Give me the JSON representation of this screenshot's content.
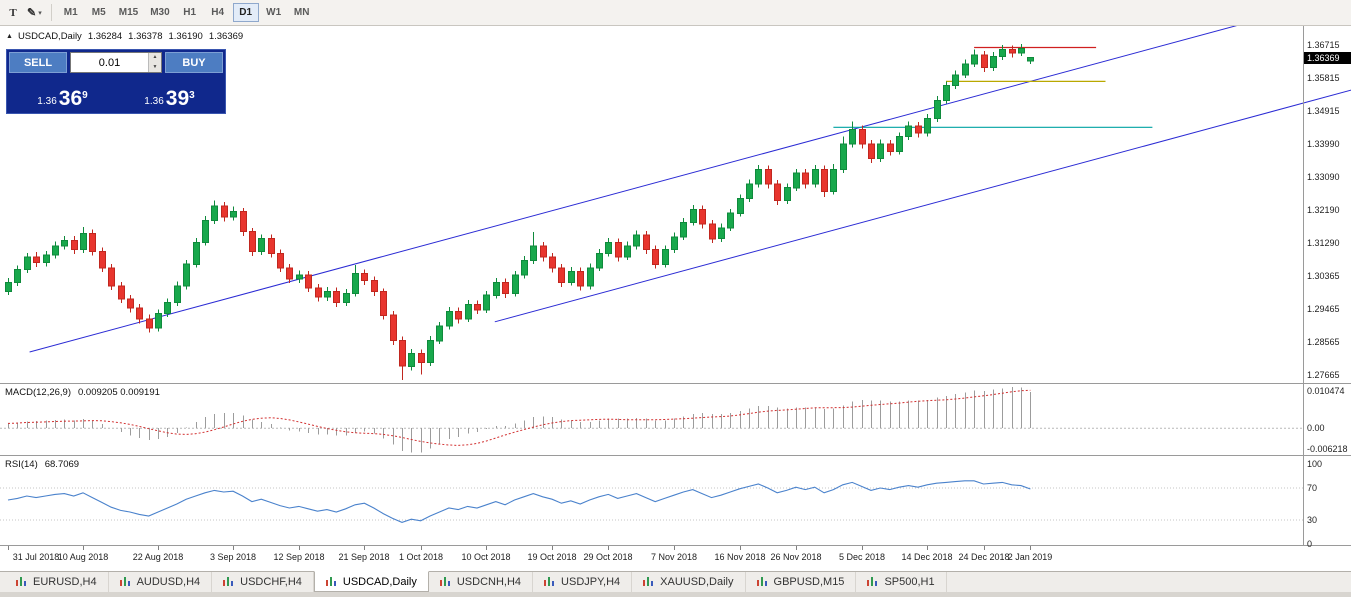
{
  "toolbar": {
    "tools": [
      {
        "name": "text-tool",
        "glyph": "T",
        "has_caret": false
      },
      {
        "name": "shapes-tool",
        "glyph": "✎",
        "has_caret": true
      }
    ],
    "timeframes": [
      "M1",
      "M5",
      "M15",
      "M30",
      "H1",
      "H4",
      "D1",
      "W1",
      "MN"
    ],
    "selected_timeframe": "D1"
  },
  "chart_header": {
    "symbol": "USDCAD,Daily",
    "open": "1.36284",
    "high": "1.36378",
    "low": "1.36190",
    "close": "1.36369"
  },
  "icons": {
    "one_click_toggle": "▲",
    "dropdown_caret": "▾",
    "spin_up": "▲",
    "spin_down": "▼"
  },
  "trade_panel": {
    "sell_label": "SELL",
    "buy_label": "BUY",
    "lot_size": "0.01",
    "sell_price": {
      "prefix": "1.36",
      "big": "36",
      "sup": "9"
    },
    "buy_price": {
      "prefix": "1.36",
      "big": "39",
      "sup": "3"
    }
  },
  "price_axis": {
    "current": "1.36369"
  },
  "chart_data": {
    "type": "candlestick",
    "symbol": "USDCAD",
    "timeframe": "Daily",
    "y_max": 1.3724,
    "y_min": 1.2744,
    "y_ticks": [
      "1.36715",
      "1.35815",
      "1.34915",
      "1.33990",
      "1.33090",
      "1.32190",
      "1.31290",
      "1.30365",
      "1.29465",
      "1.28565",
      "1.27665"
    ],
    "x_ticks": [
      {
        "label": "31 Jul 2018",
        "index": 0
      },
      {
        "label": "10 Aug 2018",
        "index": 8
      },
      {
        "label": "22 Aug 2018",
        "index": 16
      },
      {
        "label": "3 Sep 2018",
        "index": 24
      },
      {
        "label": "12 Sep 2018",
        "index": 31
      },
      {
        "label": "21 Sep 2018",
        "index": 38
      },
      {
        "label": "1 Oct 2018",
        "index": 44
      },
      {
        "label": "10 Oct 2018",
        "index": 51
      },
      {
        "label": "19 Oct 2018",
        "index": 58
      },
      {
        "label": "29 Oct 2018",
        "index": 64
      },
      {
        "label": "7 Nov 2018",
        "index": 71
      },
      {
        "label": "16 Nov 2018",
        "index": 78
      },
      {
        "label": "26 Nov 2018",
        "index": 84
      },
      {
        "label": "5 Dec 2018",
        "index": 91
      },
      {
        "label": "14 Dec 2018",
        "index": 98
      },
      {
        "label": "24 Dec 2018",
        "index": 104
      },
      {
        "label": "2 Jan 2019",
        "index": 109
      }
    ],
    "candles": [
      [
        1.2995,
        1.3032,
        1.2986,
        1.302
      ],
      [
        1.302,
        1.3066,
        1.301,
        1.3055
      ],
      [
        1.3055,
        1.3101,
        1.3046,
        1.309
      ],
      [
        1.309,
        1.3103,
        1.3062,
        1.3075
      ],
      [
        1.3075,
        1.3107,
        1.3064,
        1.3095
      ],
      [
        1.3095,
        1.3132,
        1.3086,
        1.312
      ],
      [
        1.312,
        1.3148,
        1.311,
        1.3135
      ],
      [
        1.3135,
        1.3147,
        1.3098,
        1.311
      ],
      [
        1.311,
        1.3172,
        1.3101,
        1.3155
      ],
      [
        1.3155,
        1.3165,
        1.3094,
        1.3105
      ],
      [
        1.3105,
        1.3116,
        1.3049,
        1.306
      ],
      [
        1.306,
        1.3071,
        1.2999,
        1.301
      ],
      [
        1.301,
        1.3021,
        1.2963,
        1.2975
      ],
      [
        1.2975,
        1.2986,
        1.2938,
        1.295
      ],
      [
        1.295,
        1.2961,
        1.2907,
        1.292
      ],
      [
        1.292,
        1.2932,
        1.2882,
        1.2895
      ],
      [
        1.2895,
        1.2946,
        1.2886,
        1.2935
      ],
      [
        1.2935,
        1.2976,
        1.2925,
        1.2965
      ],
      [
        1.2965,
        1.3022,
        1.2956,
        1.301
      ],
      [
        1.301,
        1.3082,
        1.3001,
        1.307
      ],
      [
        1.307,
        1.3142,
        1.3061,
        1.313
      ],
      [
        1.313,
        1.3202,
        1.3121,
        1.319
      ],
      [
        1.319,
        1.3245,
        1.3181,
        1.323
      ],
      [
        1.323,
        1.3241,
        1.3188,
        1.32
      ],
      [
        1.32,
        1.3228,
        1.319,
        1.3215
      ],
      [
        1.3215,
        1.3224,
        1.3148,
        1.316
      ],
      [
        1.316,
        1.317,
        1.3093,
        1.3105
      ],
      [
        1.3105,
        1.3152,
        1.3096,
        1.314
      ],
      [
        1.314,
        1.3151,
        1.3089,
        1.31
      ],
      [
        1.31,
        1.3111,
        1.3049,
        1.306
      ],
      [
        1.306,
        1.3071,
        1.3018,
        1.303
      ],
      [
        1.303,
        1.3053,
        1.3019,
        1.304
      ],
      [
        1.304,
        1.3051,
        1.2994,
        1.3005
      ],
      [
        1.3005,
        1.3016,
        1.2968,
        1.298
      ],
      [
        1.298,
        1.3007,
        1.2969,
        1.2995
      ],
      [
        1.2995,
        1.3006,
        1.2953,
        1.2965
      ],
      [
        1.2965,
        1.3002,
        1.2955,
        1.299
      ],
      [
        1.299,
        1.3068,
        1.2981,
        1.3045
      ],
      [
        1.3045,
        1.3056,
        1.3013,
        1.3025
      ],
      [
        1.3025,
        1.3036,
        1.2983,
        1.2995
      ],
      [
        1.2995,
        1.3004,
        1.2918,
        1.293
      ],
      [
        1.293,
        1.2941,
        1.2848,
        1.286
      ],
      [
        1.286,
        1.2871,
        1.2752,
        1.279
      ],
      [
        1.279,
        1.2838,
        1.2778,
        1.2825
      ],
      [
        1.2825,
        1.2836,
        1.2768,
        1.28
      ],
      [
        1.28,
        1.2873,
        1.2791,
        1.286
      ],
      [
        1.286,
        1.2912,
        1.2851,
        1.29
      ],
      [
        1.29,
        1.2952,
        1.2891,
        1.294
      ],
      [
        1.294,
        1.2951,
        1.2908,
        1.292
      ],
      [
        1.292,
        1.2972,
        1.2911,
        1.296
      ],
      [
        1.296,
        1.2971,
        1.2933,
        1.2945
      ],
      [
        1.2945,
        1.2997,
        1.2936,
        1.2985
      ],
      [
        1.2985,
        1.3032,
        1.2976,
        1.302
      ],
      [
        1.302,
        1.3031,
        1.2978,
        1.299
      ],
      [
        1.299,
        1.3052,
        1.2981,
        1.304
      ],
      [
        1.304,
        1.3092,
        1.3031,
        1.308
      ],
      [
        1.308,
        1.3158,
        1.3071,
        1.312
      ],
      [
        1.312,
        1.3131,
        1.3078,
        1.309
      ],
      [
        1.309,
        1.3101,
        1.3048,
        1.306
      ],
      [
        1.306,
        1.3071,
        1.3008,
        1.302
      ],
      [
        1.302,
        1.3062,
        1.3011,
        1.305
      ],
      [
        1.305,
        1.3061,
        1.2998,
        1.301
      ],
      [
        1.301,
        1.3072,
        1.3001,
        1.306
      ],
      [
        1.306,
        1.3112,
        1.3051,
        1.31
      ],
      [
        1.31,
        1.3142,
        1.3091,
        1.313
      ],
      [
        1.313,
        1.3141,
        1.3078,
        1.309
      ],
      [
        1.309,
        1.3132,
        1.3081,
        1.312
      ],
      [
        1.312,
        1.3162,
        1.3111,
        1.315
      ],
      [
        1.315,
        1.3161,
        1.3098,
        1.311
      ],
      [
        1.311,
        1.3121,
        1.3058,
        1.307
      ],
      [
        1.307,
        1.3122,
        1.3061,
        1.311
      ],
      [
        1.311,
        1.3157,
        1.3101,
        1.3145
      ],
      [
        1.3145,
        1.3197,
        1.3136,
        1.3185
      ],
      [
        1.3185,
        1.3232,
        1.3176,
        1.322
      ],
      [
        1.322,
        1.3231,
        1.3168,
        1.318
      ],
      [
        1.318,
        1.3191,
        1.3128,
        1.314
      ],
      [
        1.314,
        1.3182,
        1.3131,
        1.317
      ],
      [
        1.317,
        1.3222,
        1.3161,
        1.321
      ],
      [
        1.321,
        1.3262,
        1.3201,
        1.325
      ],
      [
        1.325,
        1.3302,
        1.3241,
        1.329
      ],
      [
        1.329,
        1.3342,
        1.3281,
        1.333
      ],
      [
        1.333,
        1.3341,
        1.3278,
        1.329
      ],
      [
        1.329,
        1.3301,
        1.3233,
        1.3245
      ],
      [
        1.3245,
        1.3292,
        1.3236,
        1.328
      ],
      [
        1.328,
        1.3332,
        1.3271,
        1.332
      ],
      [
        1.332,
        1.3331,
        1.3278,
        1.329
      ],
      [
        1.329,
        1.3342,
        1.3281,
        1.333
      ],
      [
        1.333,
        1.3341,
        1.3255,
        1.327
      ],
      [
        1.327,
        1.3345,
        1.3261,
        1.333
      ],
      [
        1.333,
        1.342,
        1.3321,
        1.34
      ],
      [
        1.34,
        1.3462,
        1.3391,
        1.344
      ],
      [
        1.344,
        1.3451,
        1.3388,
        1.34
      ],
      [
        1.34,
        1.3411,
        1.3348,
        1.336
      ],
      [
        1.336,
        1.3412,
        1.3351,
        1.34
      ],
      [
        1.34,
        1.3411,
        1.3368,
        1.338
      ],
      [
        1.338,
        1.3432,
        1.3371,
        1.342
      ],
      [
        1.342,
        1.3462,
        1.3411,
        1.345
      ],
      [
        1.345,
        1.3461,
        1.3418,
        1.343
      ],
      [
        1.343,
        1.3482,
        1.3421,
        1.347
      ],
      [
        1.347,
        1.3532,
        1.3461,
        1.352
      ],
      [
        1.352,
        1.3572,
        1.3511,
        1.356
      ],
      [
        1.356,
        1.3602,
        1.3551,
        1.359
      ],
      [
        1.359,
        1.3632,
        1.3581,
        1.362
      ],
      [
        1.362,
        1.366,
        1.3611,
        1.3645
      ],
      [
        1.3645,
        1.3656,
        1.3598,
        1.361
      ],
      [
        1.361,
        1.3652,
        1.3601,
        1.364
      ],
      [
        1.364,
        1.3672,
        1.3631,
        1.366
      ],
      [
        1.366,
        1.3671,
        1.3638,
        1.365
      ],
      [
        1.365,
        1.3674,
        1.3641,
        1.3662
      ],
      [
        1.36284,
        1.36378,
        1.3619,
        1.36369
      ]
    ],
    "trendlines": [
      {
        "name": "channel-line-upper",
        "from": {
          "index": 2.3,
          "price": 1.2829
        },
        "to": {
          "index": 136.7,
          "price": 1.3765
        }
      },
      {
        "name": "channel-line-lower",
        "from": {
          "index": 51.9,
          "price": 1.2912
        },
        "to": {
          "index": 143.2,
          "price": 1.3548
        }
      }
    ],
    "hlines": [
      {
        "name": "resistance-line-red",
        "price": 1.3665,
        "from_index": 103,
        "to_index": 116,
        "color": "#d02020"
      },
      {
        "name": "resistance-line-yellow",
        "price": 1.3572,
        "from_index": 100,
        "to_index": 117,
        "color": "#b9a800"
      },
      {
        "name": "support-line-teal",
        "price": 1.3446,
        "from_index": 88,
        "to_index": 122,
        "color": "#00a3a3"
      }
    ]
  },
  "macd": {
    "label": "MACD(12,26,9)",
    "current": "0.009205 0.009191",
    "axis_labels": [
      "0.010474",
      "0.00",
      "-0.006218"
    ],
    "y_max": 0.0112,
    "y_min": -0.0068,
    "histogram": [
      0.0012,
      0.0014,
      0.0017,
      0.0018,
      0.0019,
      0.0021,
      0.0022,
      0.002,
      0.0023,
      0.0018,
      0.001,
      0.0,
      -0.001,
      -0.0018,
      -0.0025,
      -0.003,
      -0.0028,
      -0.0022,
      -0.0012,
      0.0002,
      0.0016,
      0.0028,
      0.0036,
      0.0038,
      0.0038,
      0.0032,
      0.0022,
      0.0016,
      0.001,
      0.0002,
      -0.0006,
      -0.0008,
      -0.0012,
      -0.0016,
      -0.0016,
      -0.0019,
      -0.0018,
      -0.0012,
      -0.0008,
      -0.0014,
      -0.0026,
      -0.0042,
      -0.0058,
      -0.0062,
      -0.0062,
      -0.0052,
      -0.004,
      -0.0028,
      -0.0022,
      -0.0014,
      -0.001,
      -0.0002,
      0.0006,
      0.0006,
      0.0012,
      0.002,
      0.0028,
      0.003,
      0.0028,
      0.0022,
      0.002,
      0.0016,
      0.0016,
      0.002,
      0.0024,
      0.0024,
      0.0024,
      0.0026,
      0.0024,
      0.002,
      0.002,
      0.0024,
      0.003,
      0.0036,
      0.0038,
      0.0036,
      0.0036,
      0.0038,
      0.0044,
      0.005,
      0.0056,
      0.0056,
      0.0052,
      0.005,
      0.0052,
      0.0052,
      0.0052,
      0.0048,
      0.005,
      0.0058,
      0.0068,
      0.0072,
      0.007,
      0.007,
      0.0068,
      0.0068,
      0.007,
      0.007,
      0.0072,
      0.0078,
      0.0082,
      0.0087,
      0.0091,
      0.0095,
      0.0094,
      0.0098,
      0.0101,
      0.0104,
      0.0103,
      0.0092
    ]
  },
  "rsi": {
    "label": "RSI(14)",
    "current": "68.7069",
    "axis_labels": [
      "100",
      "70",
      "30",
      "0"
    ],
    "levels": [
      70,
      30
    ],
    "y_max": 100,
    "y_min": 0,
    "series": [
      55,
      57,
      60,
      58,
      60,
      62,
      63,
      60,
      64,
      58,
      52,
      46,
      42,
      40,
      37,
      35,
      40,
      45,
      50,
      56,
      60,
      64,
      67,
      65,
      66,
      60,
      53,
      56,
      52,
      48,
      45,
      47,
      44,
      41,
      43,
      40,
      44,
      49,
      51,
      45,
      38,
      32,
      27,
      31,
      29,
      35,
      40,
      45,
      43,
      47,
      45,
      49,
      53,
      49,
      55,
      59,
      63,
      59,
      56,
      51,
      54,
      50,
      55,
      59,
      62,
      57,
      60,
      63,
      58,
      53,
      57,
      61,
      65,
      68,
      63,
      58,
      61,
      65,
      69,
      72,
      75,
      70,
      64,
      67,
      71,
      68,
      71,
      64,
      68,
      74,
      77,
      72,
      67,
      70,
      68,
      71,
      73,
      71,
      74,
      76,
      77,
      78,
      79,
      79,
      75,
      76,
      77,
      74,
      73,
      68.7
    ]
  },
  "tabs": {
    "items": [
      {
        "label": "EURUSD,H4"
      },
      {
        "label": "AUDUSD,H4"
      },
      {
        "label": "USDCHF,H4"
      },
      {
        "label": "USDCAD,Daily"
      },
      {
        "label": "USDCNH,H4"
      },
      {
        "label": "USDJPY,H4"
      },
      {
        "label": "XAUUSD,Daily"
      },
      {
        "label": "GBPUSD,M15"
      },
      {
        "label": "SP500,H1"
      }
    ],
    "active": "USDCAD,Daily"
  },
  "colors": {
    "candle_up": "#18a84c",
    "candle_up_stroke": "#0f8a3c",
    "candle_down": "#e8352e",
    "candle_down_stroke": "#c0271f",
    "trendline": "#2b2bd4",
    "macd_bar": "#9c9c9c",
    "macd_signal": "#d23030",
    "rsi_line": "#4a82cc",
    "panel_blue": "#10288c",
    "button_blue": "#4d7dc2",
    "badge_bg": "#000000"
  }
}
